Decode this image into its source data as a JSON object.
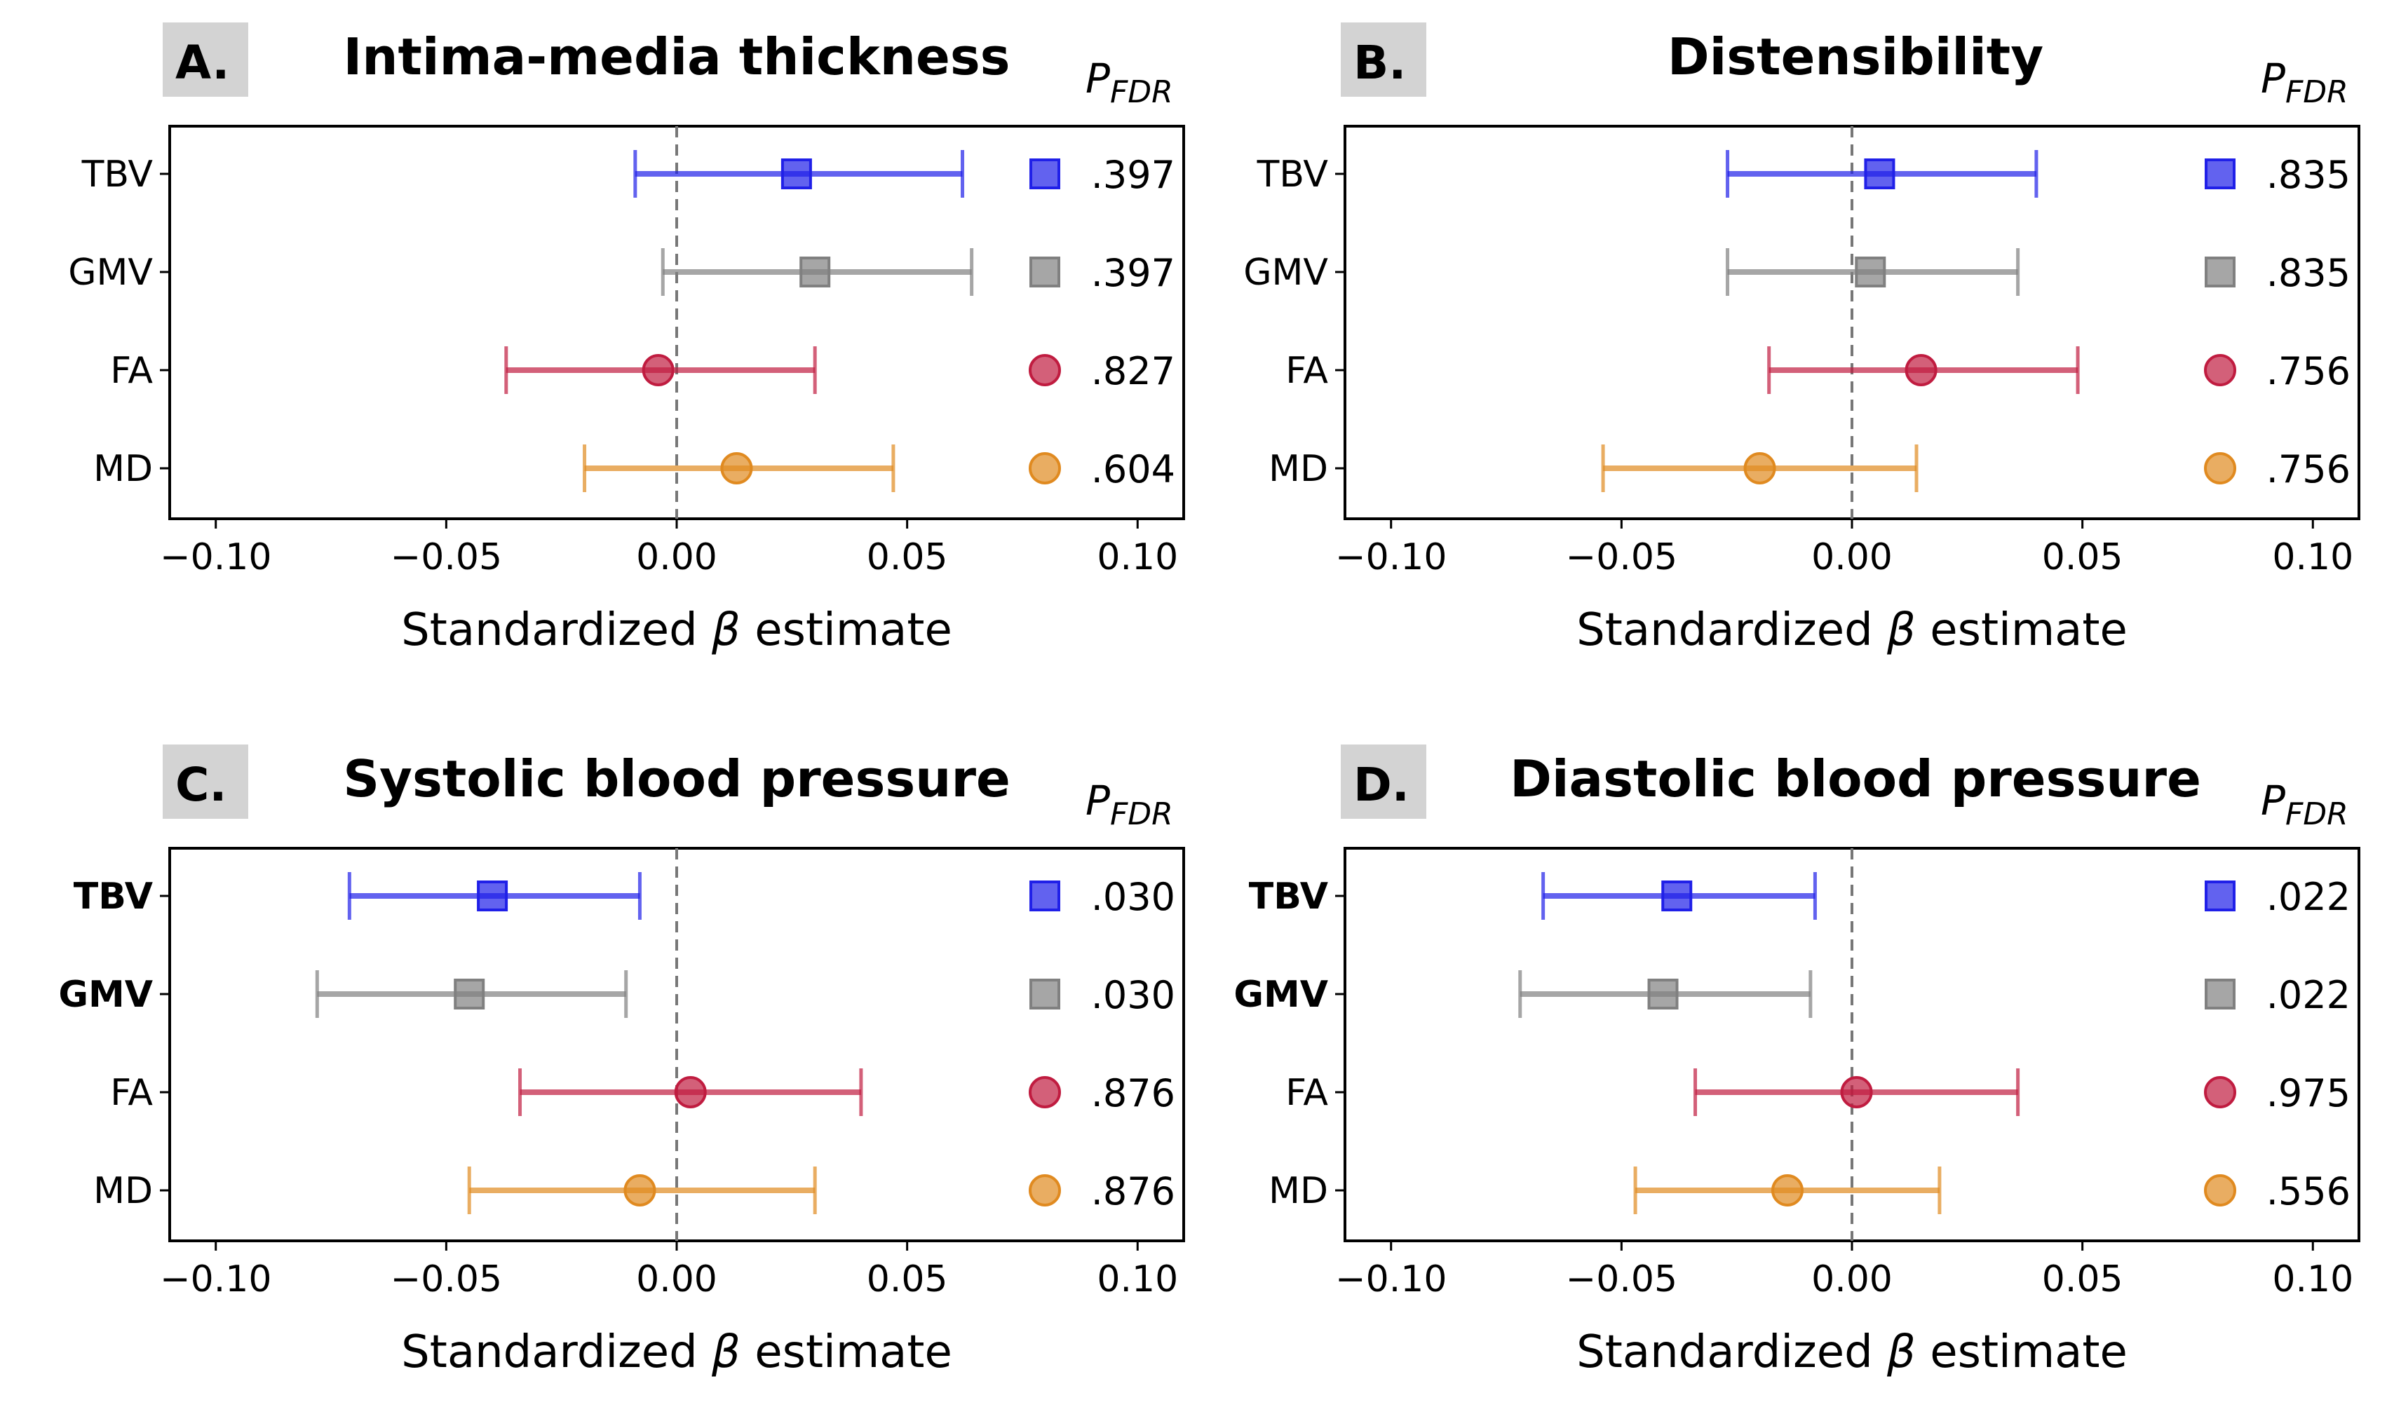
{
  "chart_data": [
    {
      "type": "forest",
      "panel_label": "A.",
      "title": "Intima-media thickness",
      "xlabel_pre": "Standardized ",
      "xlabel_sym": "β",
      "xlabel_post": " estimate",
      "p_header_main": "P",
      "p_header_sub": "FDR",
      "xlim": [
        -0.11,
        0.11
      ],
      "xticks": [
        -0.1,
        -0.05,
        0.0,
        0.05,
        0.1
      ],
      "xtick_labels": [
        "−0.10",
        "−0.05",
        "0.00",
        "0.05",
        "0.10"
      ],
      "reference_line": 0.0,
      "rows": [
        {
          "label": "TBV",
          "bold": false,
          "estimate": 0.026,
          "ci_low": -0.009,
          "ci_high": 0.062,
          "p_fdr": ".397",
          "marker": "square",
          "color": "#2020e8"
        },
        {
          "label": "GMV",
          "bold": false,
          "estimate": 0.03,
          "ci_low": -0.003,
          "ci_high": 0.064,
          "p_fdr": ".397",
          "marker": "square",
          "color": "#808080"
        },
        {
          "label": "FA",
          "bold": false,
          "estimate": -0.004,
          "ci_low": -0.037,
          "ci_high": 0.03,
          "p_fdr": ".827",
          "marker": "circle",
          "color": "#c01c40"
        },
        {
          "label": "MD",
          "bold": false,
          "estimate": 0.013,
          "ci_low": -0.02,
          "ci_high": 0.047,
          "p_fdr": ".604",
          "marker": "circle",
          "color": "#e08a20"
        }
      ]
    },
    {
      "type": "forest",
      "panel_label": "B.",
      "title": "Distensibility",
      "xlabel_pre": "Standardized ",
      "xlabel_sym": "β",
      "xlabel_post": " estimate",
      "p_header_main": "P",
      "p_header_sub": "FDR",
      "xlim": [
        -0.11,
        0.11
      ],
      "xticks": [
        -0.1,
        -0.05,
        0.0,
        0.05,
        0.1
      ],
      "xtick_labels": [
        "−0.10",
        "−0.05",
        "0.00",
        "0.05",
        "0.10"
      ],
      "reference_line": 0.0,
      "rows": [
        {
          "label": "TBV",
          "bold": false,
          "estimate": 0.006,
          "ci_low": -0.027,
          "ci_high": 0.04,
          "p_fdr": ".835",
          "marker": "square",
          "color": "#2020e8"
        },
        {
          "label": "GMV",
          "bold": false,
          "estimate": 0.004,
          "ci_low": -0.027,
          "ci_high": 0.036,
          "p_fdr": ".835",
          "marker": "square",
          "color": "#808080"
        },
        {
          "label": "FA",
          "bold": false,
          "estimate": 0.015,
          "ci_low": -0.018,
          "ci_high": 0.049,
          "p_fdr": ".756",
          "marker": "circle",
          "color": "#c01c40"
        },
        {
          "label": "MD",
          "bold": false,
          "estimate": -0.02,
          "ci_low": -0.054,
          "ci_high": 0.014,
          "p_fdr": ".756",
          "marker": "circle",
          "color": "#e08a20"
        }
      ]
    },
    {
      "type": "forest",
      "panel_label": "C.",
      "title": "Systolic blood pressure",
      "xlabel_pre": "Standardized ",
      "xlabel_sym": "β",
      "xlabel_post": " estimate",
      "p_header_main": "P",
      "p_header_sub": "FDR",
      "xlim": [
        -0.11,
        0.11
      ],
      "xticks": [
        -0.1,
        -0.05,
        0.0,
        0.05,
        0.1
      ],
      "xtick_labels": [
        "−0.10",
        "−0.05",
        "0.00",
        "0.05",
        "0.10"
      ],
      "reference_line": 0.0,
      "rows": [
        {
          "label": "TBV",
          "bold": true,
          "estimate": -0.04,
          "ci_low": -0.071,
          "ci_high": -0.008,
          "p_fdr": ".030",
          "marker": "square",
          "color": "#2020e8"
        },
        {
          "label": "GMV",
          "bold": true,
          "estimate": -0.045,
          "ci_low": -0.078,
          "ci_high": -0.011,
          "p_fdr": ".030",
          "marker": "square",
          "color": "#808080"
        },
        {
          "label": "FA",
          "bold": false,
          "estimate": 0.003,
          "ci_low": -0.034,
          "ci_high": 0.04,
          "p_fdr": ".876",
          "marker": "circle",
          "color": "#c01c40"
        },
        {
          "label": "MD",
          "bold": false,
          "estimate": -0.008,
          "ci_low": -0.045,
          "ci_high": 0.03,
          "p_fdr": ".876",
          "marker": "circle",
          "color": "#e08a20"
        }
      ]
    },
    {
      "type": "forest",
      "panel_label": "D.",
      "title": "Diastolic blood pressure",
      "xlabel_pre": "Standardized ",
      "xlabel_sym": "β",
      "xlabel_post": " estimate",
      "p_header_main": "P",
      "p_header_sub": "FDR",
      "xlim": [
        -0.11,
        0.11
      ],
      "xticks": [
        -0.1,
        -0.05,
        0.0,
        0.05,
        0.1
      ],
      "xtick_labels": [
        "−0.10",
        "−0.05",
        "0.00",
        "0.05",
        "0.10"
      ],
      "reference_line": 0.0,
      "rows": [
        {
          "label": "TBV",
          "bold": true,
          "estimate": -0.038,
          "ci_low": -0.067,
          "ci_high": -0.008,
          "p_fdr": ".022",
          "marker": "square",
          "color": "#2020e8"
        },
        {
          "label": "GMV",
          "bold": true,
          "estimate": -0.041,
          "ci_low": -0.072,
          "ci_high": -0.009,
          "p_fdr": ".022",
          "marker": "square",
          "color": "#808080"
        },
        {
          "label": "FA",
          "bold": false,
          "estimate": 0.001,
          "ci_low": -0.034,
          "ci_high": 0.036,
          "p_fdr": ".975",
          "marker": "circle",
          "color": "#c01c40"
        },
        {
          "label": "MD",
          "bold": false,
          "estimate": -0.014,
          "ci_low": -0.047,
          "ci_high": 0.019,
          "p_fdr": ".556",
          "marker": "circle",
          "color": "#e08a20"
        }
      ]
    }
  ]
}
